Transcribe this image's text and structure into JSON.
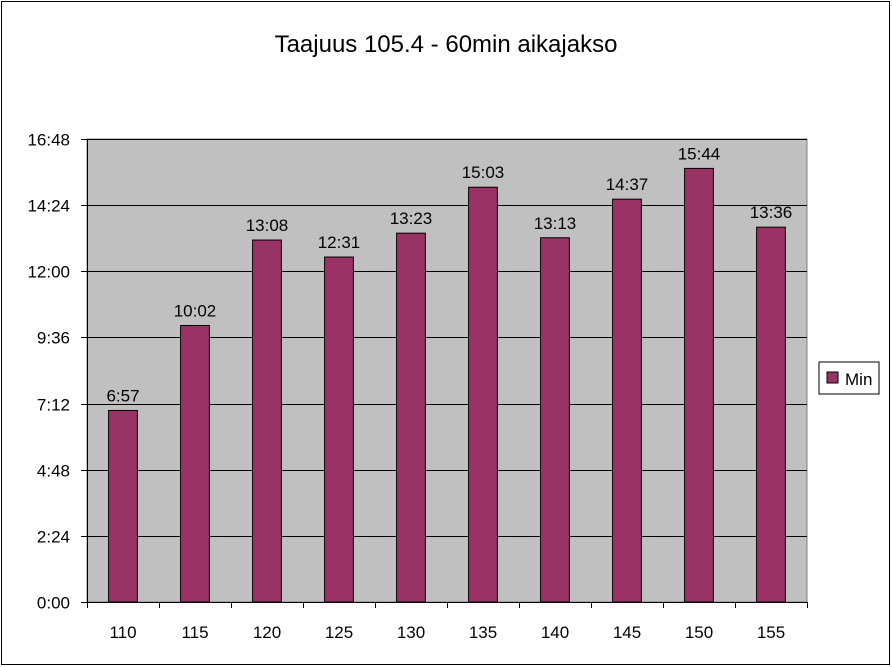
{
  "chart_data": {
    "type": "bar",
    "title": "Taajuus 105.4 - 60min aikajakso",
    "xlabel": "",
    "ylabel": "",
    "categories": [
      "110",
      "115",
      "120",
      "125",
      "130",
      "135",
      "140",
      "145",
      "150",
      "155"
    ],
    "series": [
      {
        "name": "Min",
        "values_minutes": [
          6.95,
          10.0333,
          13.1333,
          12.5167,
          13.3833,
          15.05,
          13.2167,
          14.6167,
          15.7333,
          13.6
        ],
        "labels": [
          "6:57",
          "10:02",
          "13:08",
          "12:31",
          "13:23",
          "15:03",
          "13:13",
          "14:37",
          "15:44",
          "13:36"
        ]
      }
    ],
    "ylim_minutes": [
      0,
      16.8
    ],
    "y_ticks_minutes": [
      0,
      2.4,
      4.8,
      7.2,
      9.6,
      12,
      14.4,
      16.8
    ],
    "y_tick_labels": [
      "0:00",
      "2:24",
      "4:48",
      "7:12",
      "9:36",
      "12:00",
      "14:24",
      "16:48"
    ],
    "grid": true,
    "legend": "right",
    "colors": {
      "bar": "#993366",
      "plot_background": "#c0c0c0",
      "grid": "#000000",
      "frame": "#000000"
    }
  }
}
